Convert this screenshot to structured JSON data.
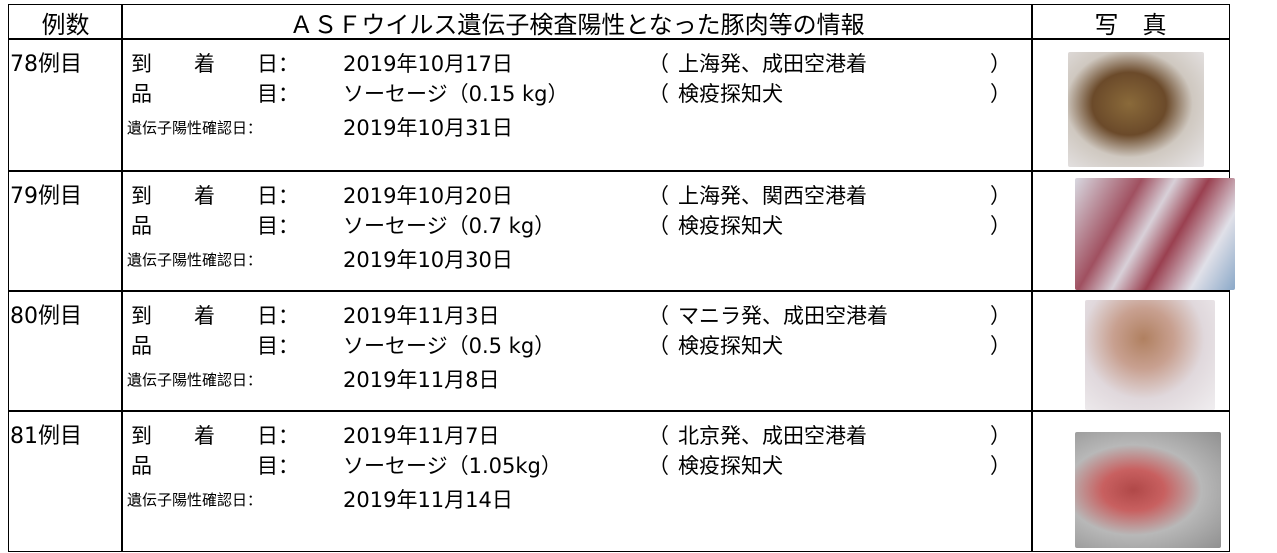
{
  "header": {
    "case": "例数",
    "info": "ＡＳＦウイルス遺伝子検査陽性となった豚肉等の情報",
    "photo": "写　真"
  },
  "labels": {
    "arrival": "到　　着　　日：",
    "item": "品　　　　　目：",
    "confirmed": "遺伝子陽性確認日：",
    "open": "（",
    "close": "）"
  },
  "rows": [
    {
      "case": "78例目",
      "arrival_date": "2019年10月17日",
      "route": "上海発、成田空港着",
      "item": "ソーセージ（0.15 kg）",
      "detection": "検疫探知犬",
      "confirmed_date": "2019年10月31日"
    },
    {
      "case": "79例目",
      "arrival_date": "2019年10月20日",
      "route": "上海発、関西空港着",
      "item": "ソーセージ（0.7 kg）",
      "detection": "検疫探知犬",
      "confirmed_date": "2019年10月30日"
    },
    {
      "case": "80例目",
      "arrival_date": "2019年11月3日",
      "route": "マニラ発、成田空港着",
      "item": "ソーセージ（0.5 kg）",
      "detection": "検疫探知犬",
      "confirmed_date": "2019年11月8日"
    },
    {
      "case": "81例目",
      "arrival_date": "2019年11月7日",
      "route": "北京発、成田空港着",
      "item": "ソーセージ（1.05kg）",
      "detection": "検疫探知犬",
      "confirmed_date": "2019年11月14日"
    }
  ]
}
